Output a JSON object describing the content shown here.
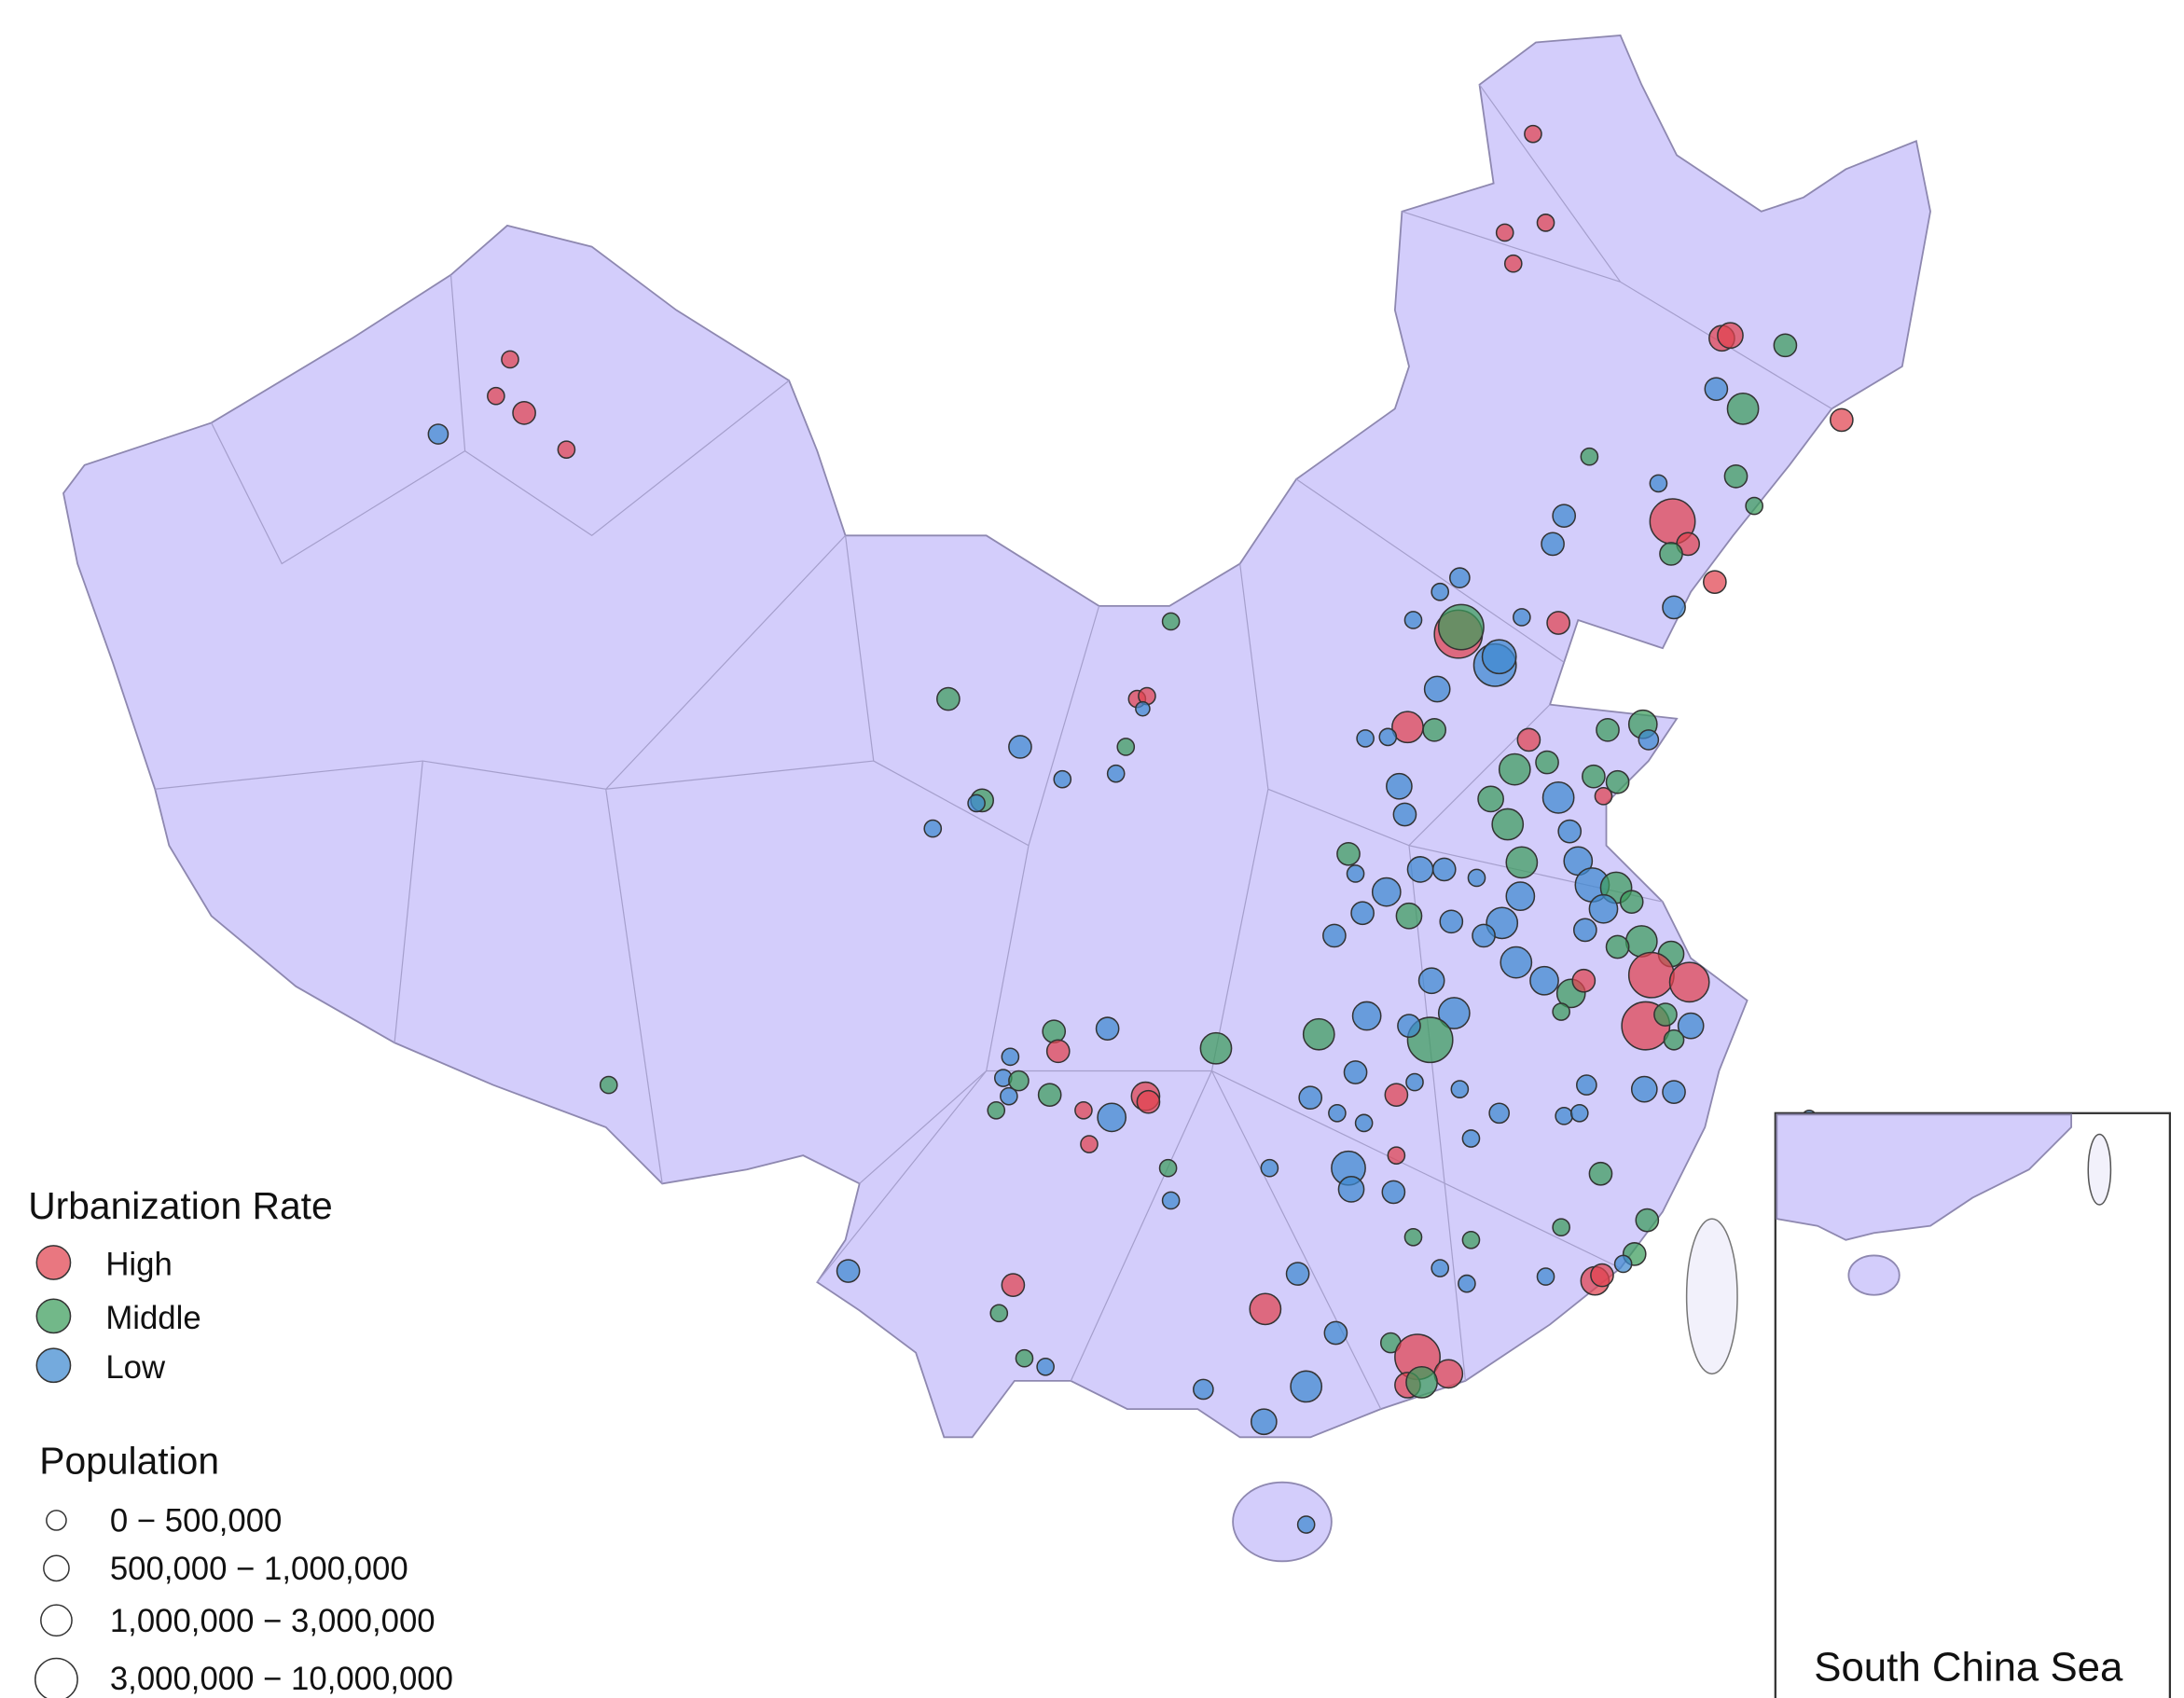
{
  "legend": {
    "urbanization": {
      "title": "Urbanization Rate",
      "items": [
        "High",
        "Middle",
        "Low"
      ]
    },
    "population": {
      "title": "Population",
      "items": [
        "0 − 500,000",
        "500,000 − 1,000,000",
        "1,000,000 − 3,000,000",
        "3,000,000 − 10,000,000"
      ]
    }
  },
  "inset": {
    "label": "South China Sea"
  }
}
